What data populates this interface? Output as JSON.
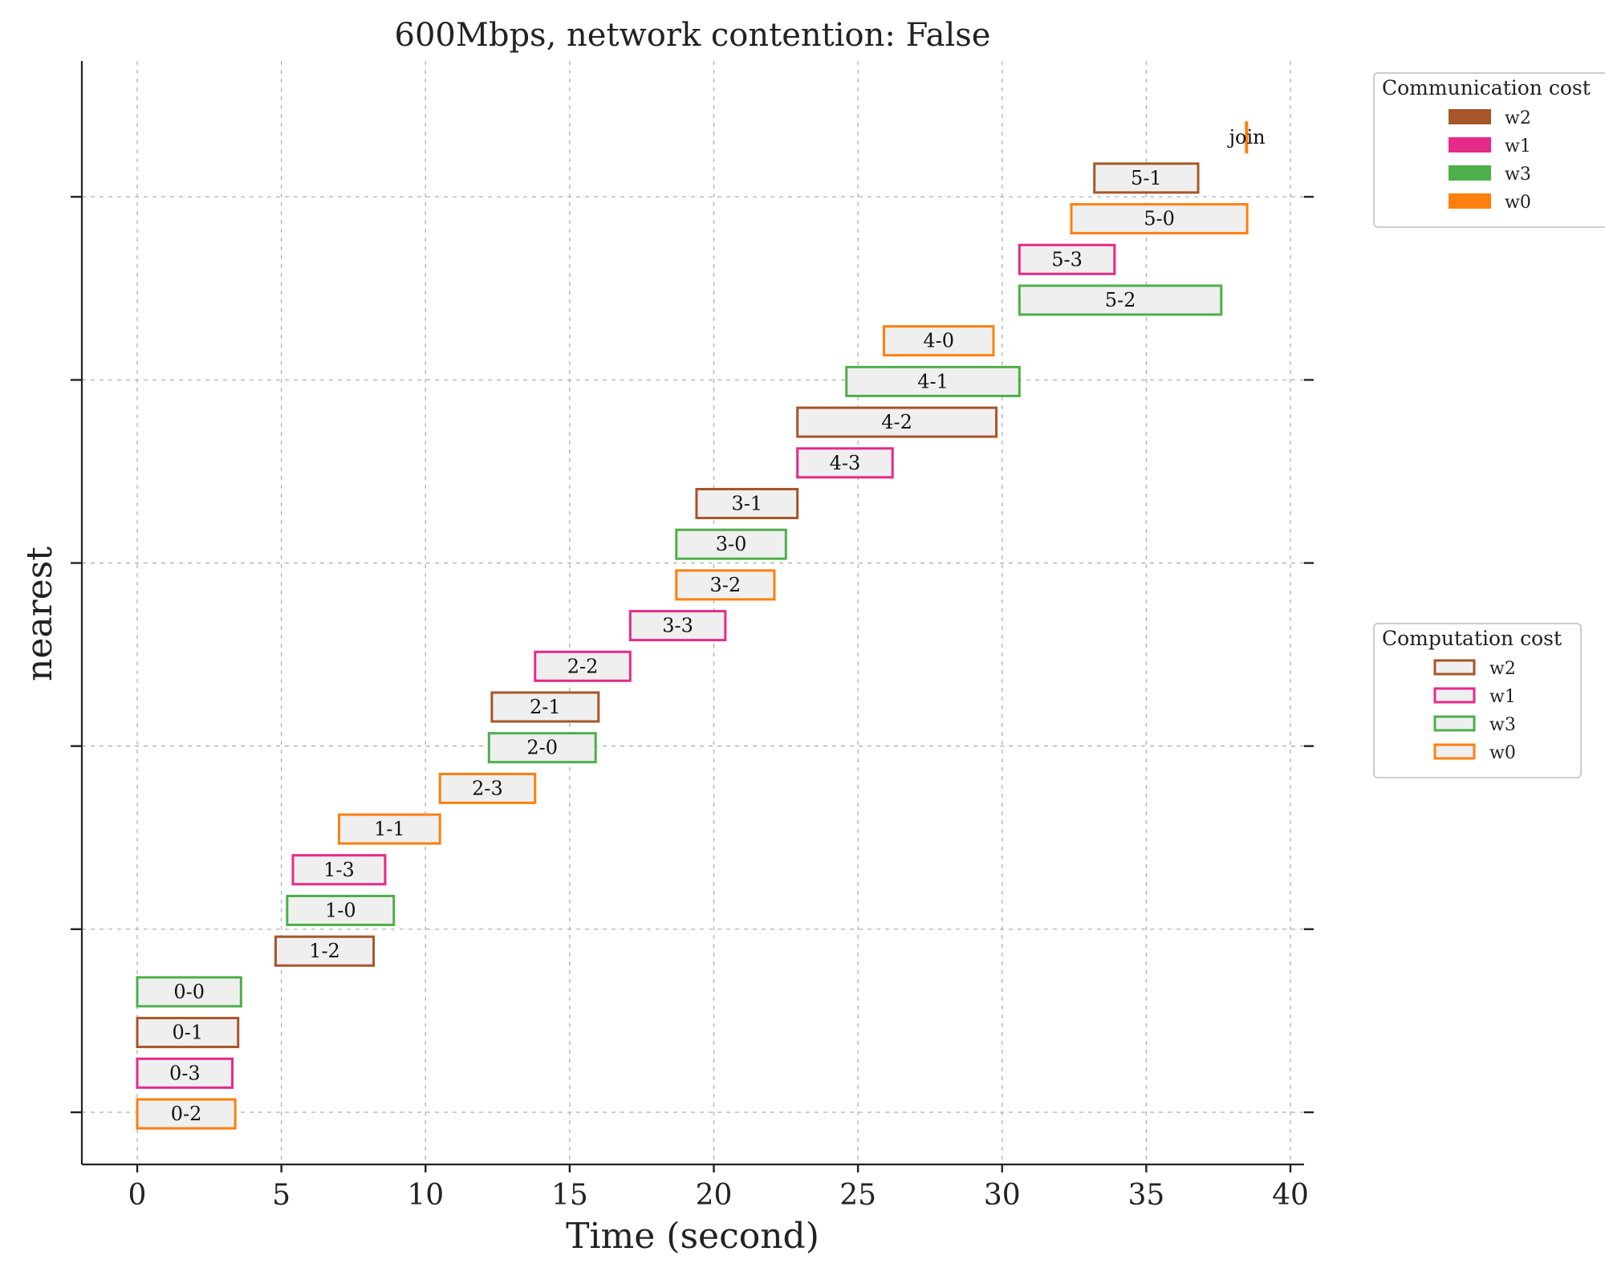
{
  "chart_data": {
    "type": "gantt",
    "title": "600Mbps, network contention: False",
    "xlabel": "Time (second)",
    "ylabel": "nearest",
    "xlim": [
      -1.9,
      40.4
    ],
    "xticks": [
      0,
      5,
      10,
      15,
      20,
      25,
      30,
      35,
      40
    ],
    "grid": true,
    "workers": {
      "w0": "#ff7f0e",
      "w1": "#e7298a",
      "w2": "#a65628",
      "w3": "#4daf4a"
    },
    "task_bar_fill": "#efefef",
    "tasks": [
      {
        "label": "0-2",
        "worker": "w0",
        "start": 0.0,
        "end": 3.4
      },
      {
        "label": "0-3",
        "worker": "w1",
        "start": 0.0,
        "end": 3.3
      },
      {
        "label": "0-1",
        "worker": "w2",
        "start": 0.0,
        "end": 3.5
      },
      {
        "label": "0-0",
        "worker": "w3",
        "start": 0.0,
        "end": 3.6
      },
      {
        "label": "1-2",
        "worker": "w2",
        "start": 4.8,
        "end": 8.2
      },
      {
        "label": "1-0",
        "worker": "w3",
        "start": 5.2,
        "end": 8.9
      },
      {
        "label": "1-3",
        "worker": "w1",
        "start": 5.4,
        "end": 8.6
      },
      {
        "label": "1-1",
        "worker": "w0",
        "start": 7.0,
        "end": 10.5
      },
      {
        "label": "2-3",
        "worker": "w0",
        "start": 10.5,
        "end": 13.8
      },
      {
        "label": "2-0",
        "worker": "w3",
        "start": 12.2,
        "end": 15.9
      },
      {
        "label": "2-1",
        "worker": "w2",
        "start": 12.3,
        "end": 16.0
      },
      {
        "label": "2-2",
        "worker": "w1",
        "start": 13.8,
        "end": 17.1
      },
      {
        "label": "3-3",
        "worker": "w1",
        "start": 17.1,
        "end": 20.4
      },
      {
        "label": "3-2",
        "worker": "w0",
        "start": 18.7,
        "end": 22.1
      },
      {
        "label": "3-0",
        "worker": "w3",
        "start": 18.7,
        "end": 22.5
      },
      {
        "label": "3-1",
        "worker": "w2",
        "start": 19.4,
        "end": 22.9
      },
      {
        "label": "4-3",
        "worker": "w1",
        "start": 22.9,
        "end": 26.2
      },
      {
        "label": "4-2",
        "worker": "w2",
        "start": 22.9,
        "end": 29.8
      },
      {
        "label": "4-1",
        "worker": "w3",
        "start": 24.6,
        "end": 30.6
      },
      {
        "label": "4-0",
        "worker": "w0",
        "start": 25.9,
        "end": 29.7
      },
      {
        "label": "5-2",
        "worker": "w3",
        "start": 30.6,
        "end": 37.6
      },
      {
        "label": "5-3",
        "worker": "w1",
        "start": 30.6,
        "end": 33.9
      },
      {
        "label": "5-0",
        "worker": "w0",
        "start": 32.4,
        "end": 38.5
      },
      {
        "label": "5-1",
        "worker": "w2",
        "start": 33.2,
        "end": 36.8
      }
    ],
    "join": {
      "label": "join",
      "worker": "w0",
      "start": 38.45,
      "end": 38.55
    },
    "legends": [
      {
        "title": "Communication cost",
        "style": "filled",
        "entries": [
          "w2",
          "w1",
          "w3",
          "w0"
        ],
        "placement": "upper-right outside"
      },
      {
        "title": "Computation cost",
        "style": "outlined",
        "entries": [
          "w2",
          "w1",
          "w3",
          "w0"
        ],
        "placement": "center-right outside"
      }
    ]
  }
}
